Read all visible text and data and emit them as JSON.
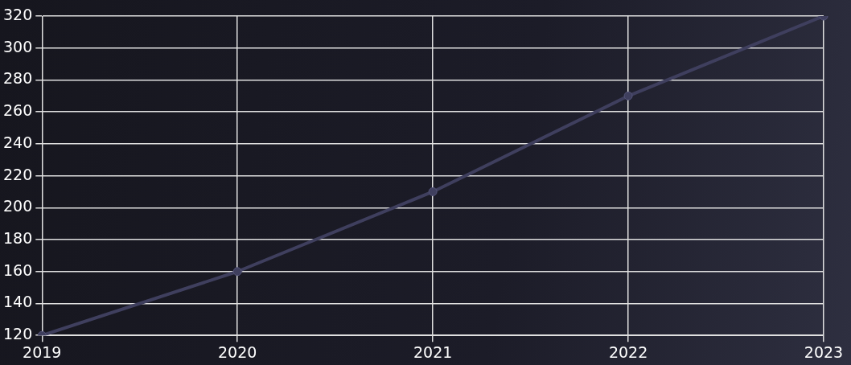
{
  "chart_data": {
    "type": "line",
    "categories": [
      "2019",
      "2020",
      "2021",
      "2022",
      "2023"
    ],
    "series": [
      {
        "color": "#3f3f5e",
        "values": [
          120,
          160,
          210,
          270,
          320
        ]
      }
    ],
    "ylim": [
      120,
      320
    ],
    "yticks": [
      120,
      140,
      160,
      180,
      200,
      220,
      240,
      260,
      280,
      300,
      320
    ],
    "grid": true,
    "legend": false,
    "marker": "circle",
    "line_style": "solid"
  }
}
